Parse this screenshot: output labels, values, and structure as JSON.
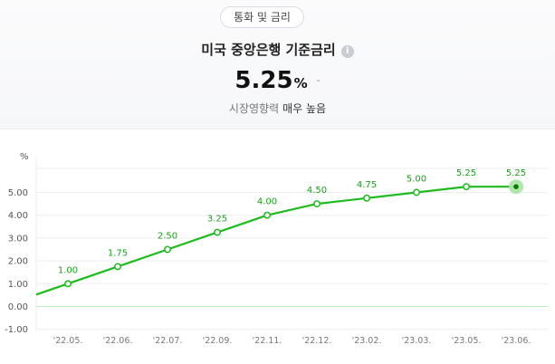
{
  "header": {
    "category": "통화 및 금리",
    "title": "미국 중앙은행 기준금리",
    "info_icon": "i",
    "value": "5.25",
    "unit": "%",
    "change": "-",
    "impact_label": "시장영향력",
    "impact_level": "매우 높음"
  },
  "colors": {
    "line": "#1dbb1d",
    "label": "#1a9f1a",
    "highlight": "#a7e6a2",
    "grid": "#eceef2",
    "zero_line": "#b8ebb8",
    "axis_text": "#555555"
  },
  "chart_data": {
    "type": "line",
    "unit_label": "%",
    "x": [
      "'22.05.",
      "'22.06.",
      "'22.07.",
      "'22.09.",
      "'22.11.",
      "'22.12.",
      "'23.02.",
      "'23.03.",
      "'23.05.",
      "'23.06."
    ],
    "values": [
      1.0,
      1.75,
      2.5,
      3.25,
      4.0,
      4.5,
      4.75,
      5.0,
      5.25,
      5.25
    ],
    "value_labels": [
      "1.00",
      "1.75",
      "2.50",
      "3.25",
      "4.00",
      "4.50",
      "4.75",
      "5.00",
      "5.25",
      "5.25"
    ],
    "y_ticks": [
      5.0,
      4.0,
      3.0,
      2.0,
      1.0,
      0.0,
      -1.0
    ],
    "y_tick_labels": [
      "5.00",
      "4.00",
      "3.00",
      "2.00",
      "1.00",
      "0.00",
      "-1.00"
    ],
    "ylim": [
      -1.0,
      5.5
    ],
    "highlight_last": true,
    "grid": true
  }
}
